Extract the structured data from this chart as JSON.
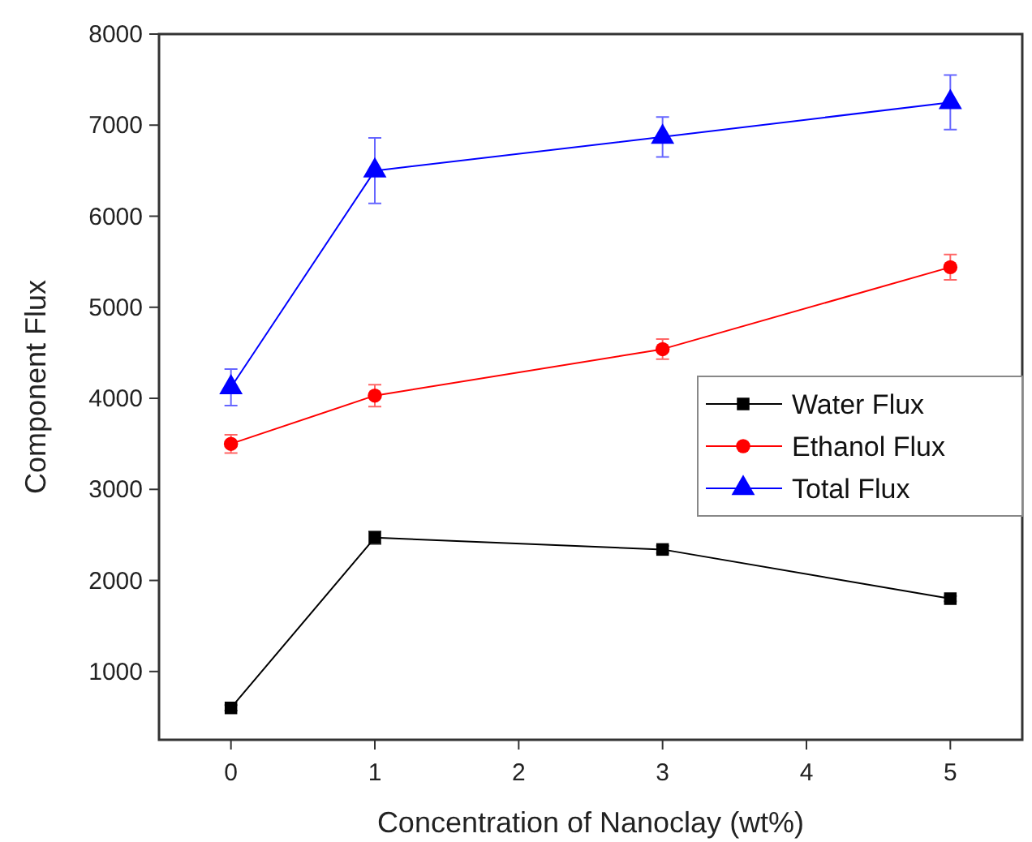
{
  "chart_data": {
    "type": "line",
    "xlabel": "Concentration of Nanoclay (wt%)",
    "ylabel": "Component Flux",
    "x": [
      0,
      1,
      3,
      5
    ],
    "series": [
      {
        "name": "Water Flux",
        "color": "#000000",
        "marker": "square",
        "values": [
          600,
          2470,
          2340,
          1800
        ],
        "errors": [
          30,
          70,
          40,
          30
        ]
      },
      {
        "name": "Ethanol Flux",
        "color": "#ff0000",
        "marker": "circle",
        "values": [
          3500,
          4030,
          4540,
          5440
        ],
        "errors": [
          100,
          120,
          110,
          140
        ]
      },
      {
        "name": "Total Flux",
        "color": "#0000ff",
        "marker": "triangle",
        "values": [
          4120,
          6500,
          6870,
          7250
        ],
        "errors": [
          200,
          360,
          220,
          300
        ]
      }
    ],
    "xlim": [
      -0.5,
      5.5
    ],
    "xticks": [
      0,
      1,
      2,
      3,
      4,
      5
    ],
    "ylim": [
      250,
      8000
    ],
    "yticks": [
      1000,
      2000,
      3000,
      4000,
      5000,
      6000,
      7000,
      8000
    ],
    "grid": false,
    "legend": "right"
  }
}
